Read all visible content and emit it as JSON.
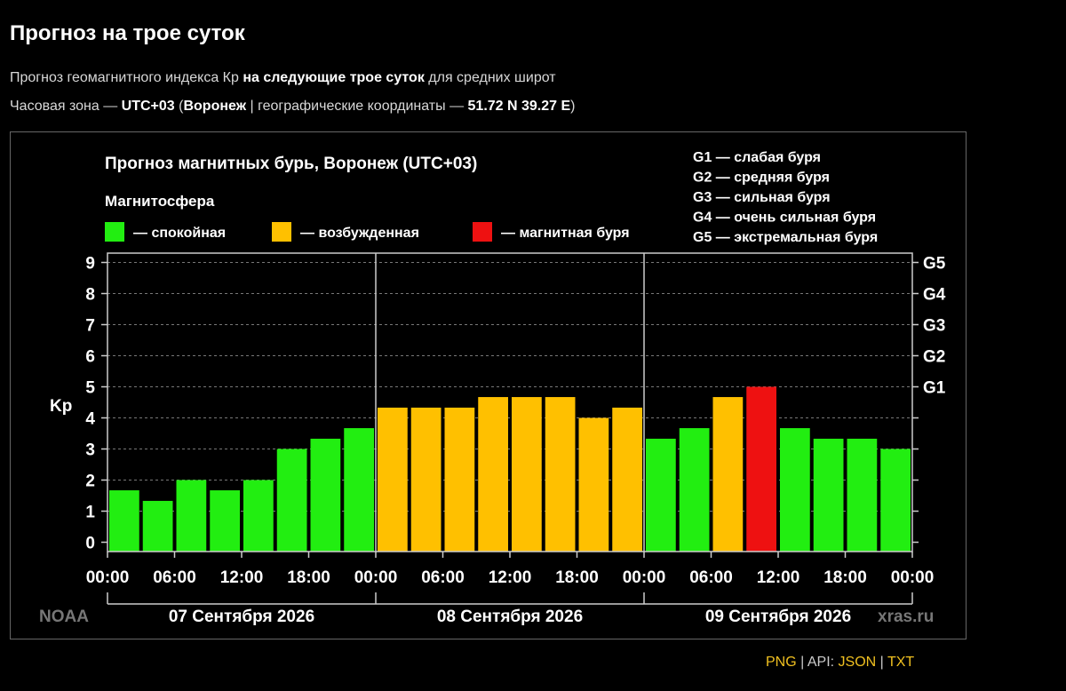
{
  "page": {
    "title": "Прогноз на трое суток",
    "desc_part1": "Прогноз геомагнитного индекса Кр ",
    "desc_bold": "на следующие трое суток",
    "desc_part2": " для средних широт",
    "tz_prefix": "Часовая зона — ",
    "tz_value": "UTC+03",
    "tz_open": " (",
    "tz_city": "Воронеж",
    "tz_coords_label": " | географические координаты — ",
    "tz_coords": "51.72 N 39.27 E",
    "tz_close": ")"
  },
  "links": {
    "png": "PNG",
    "sep1": "|",
    "api_label": "API: ",
    "json": "JSON",
    "sep2": "|",
    "txt": "TXT"
  },
  "chart_data": {
    "type": "bar",
    "title": "Прогноз магнитных бурь, Воронеж (UTC+03)",
    "ylabel": "Kp",
    "ylim": [
      0,
      9
    ],
    "grid": "dashed-horizontal",
    "legend_title": "Магнитосфера",
    "legend": [
      {
        "label": "— спокойная",
        "color": "#22ee11"
      },
      {
        "label": "— возбужденная",
        "color": "#ffc000"
      },
      {
        "label": "— магнитная буря",
        "color": "#ee1111"
      }
    ],
    "g_scale": [
      {
        "label": "G1 — слабая буря",
        "level": 5,
        "tick": "G1"
      },
      {
        "label": "G2 — средняя буря",
        "level": 6,
        "tick": "G2"
      },
      {
        "label": "G3 — сильная буря",
        "level": 7,
        "tick": "G3"
      },
      {
        "label": "G4 — очень сильная буря",
        "level": 8,
        "tick": "G4"
      },
      {
        "label": "G5 — экстремальная буря",
        "level": 9,
        "tick": "G5"
      }
    ],
    "y_ticks": [
      "0",
      "1",
      "2",
      "3",
      "4",
      "5",
      "6",
      "7",
      "8",
      "9"
    ],
    "x_tick_labels": [
      "00:00",
      "06:00",
      "12:00",
      "18:00",
      "00:00",
      "06:00",
      "12:00",
      "18:00",
      "00:00",
      "06:00",
      "12:00",
      "18:00",
      "00:00"
    ],
    "days": [
      "07 Сентября 2026",
      "08 Сентября 2026",
      "09 Сентября 2026"
    ],
    "values": [
      1.67,
      1.33,
      2.0,
      1.67,
      2.0,
      3.0,
      3.33,
      3.67,
      4.33,
      4.33,
      4.33,
      4.67,
      4.67,
      4.67,
      4.0,
      4.33,
      3.33,
      3.67,
      4.67,
      5.0,
      3.67,
      3.33,
      3.33,
      3.0
    ],
    "colors": {
      "quiet": "#22ee11",
      "active": "#ffc000",
      "storm": "#ee1111"
    },
    "source_left": "NOAA",
    "source_right": "xras.ru"
  }
}
